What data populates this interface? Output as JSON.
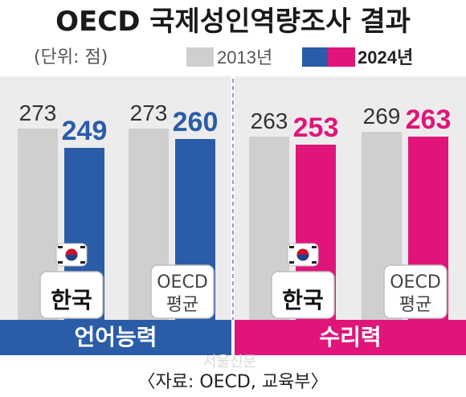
{
  "chart_data": {
    "type": "bar",
    "title": "OECD 국제성인역량조사 결과",
    "unit_label": "(단위: 점)",
    "legend": [
      {
        "name": "2013년",
        "colors": [
          "#cfcfcf"
        ]
      },
      {
        "name": "2024년",
        "colors": [
          "#2a5ca8",
          "#e0157a"
        ]
      }
    ],
    "ylim": [
      0,
      300
    ],
    "panels": [
      {
        "label": "언어능력",
        "color": "#2a5ca8",
        "categories": [
          "한국",
          "OECD 평균"
        ],
        "series": [
          {
            "name": "2013년",
            "values": [
              273,
              273
            ]
          },
          {
            "name": "2024년",
            "values": [
              249,
              260
            ]
          }
        ]
      },
      {
        "label": "수리력",
        "color": "#e0157a",
        "categories": [
          "한국",
          "OECD 평균"
        ],
        "series": [
          {
            "name": "2013년",
            "values": [
              263,
              269
            ]
          },
          {
            "name": "2024년",
            "values": [
              253,
              263
            ]
          }
        ]
      }
    ],
    "source": "〈자료: OECD, 교육부〉",
    "watermark": "서울신문"
  },
  "colors": {
    "old_bar": "#cfcfcf",
    "panel_bg": "#ececec",
    "divider": "#8a9bcc"
  }
}
